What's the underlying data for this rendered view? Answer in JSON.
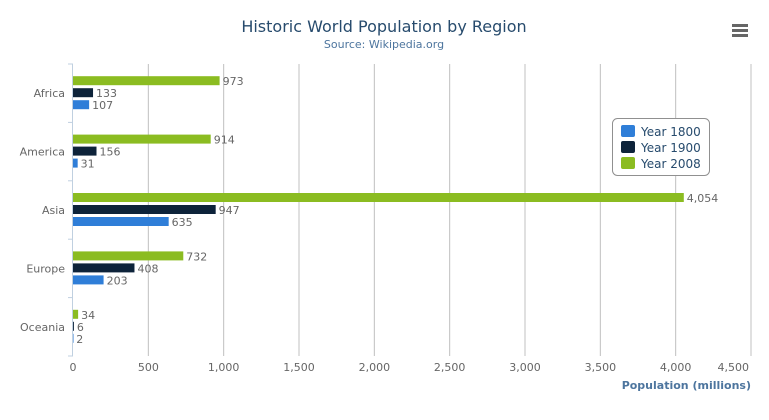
{
  "chart_data": {
    "type": "bar",
    "orientation": "horizontal",
    "title": "Historic World Population by Region",
    "subtitle": "Source: Wikipedia.org",
    "categories": [
      "Africa",
      "America",
      "Asia",
      "Europe",
      "Oceania"
    ],
    "series": [
      {
        "name": "Year 1800",
        "color": "#2f7ed8",
        "values": [
          107,
          31,
          635,
          203,
          2
        ]
      },
      {
        "name": "Year 1900",
        "color": "#0d233a",
        "values": [
          133,
          156,
          947,
          408,
          6
        ]
      },
      {
        "name": "Year 2008",
        "color": "#8bbc21",
        "values": [
          973,
          914,
          4054,
          732,
          34
        ]
      }
    ],
    "xlabel": "",
    "ylabel": "Population (millions)",
    "value_axis_range": [
      0,
      4500
    ],
    "value_ticks": [
      "0",
      "500",
      "1,000",
      "1,500",
      "2,000",
      "2,500",
      "3,000",
      "3,500",
      "4,000",
      "4,500"
    ],
    "grid": true,
    "data_labels": true,
    "legend_position": "right",
    "menu_icon": "hamburger-menu-icon"
  }
}
